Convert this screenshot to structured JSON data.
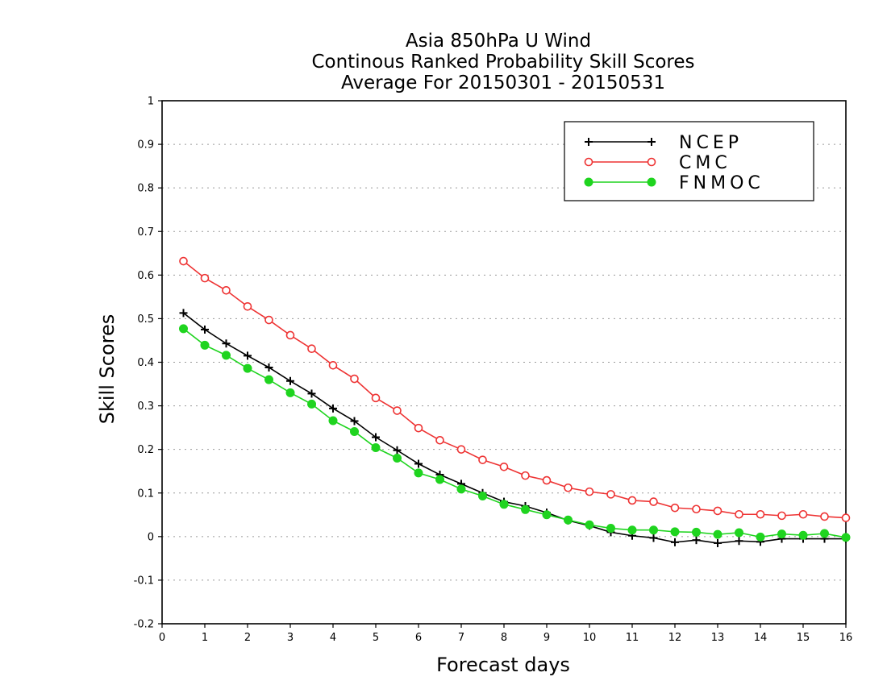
{
  "chart_data": {
    "type": "line",
    "title_lines": [
      "Asia 850hPa U Wind",
      "Continous Ranked Probability Skill Scores",
      "Average For 20150301 - 20150531"
    ],
    "xlabel": "Forecast days",
    "ylabel": "Skill Scores",
    "xlim": [
      0,
      16
    ],
    "ylim": [
      -0.2,
      1
    ],
    "xticks": [
      "0",
      "1",
      "2",
      "3",
      "4",
      "5",
      "6",
      "7",
      "8",
      "9",
      "10",
      "11",
      "12",
      "13",
      "14",
      "15",
      "16"
    ],
    "yticks": [
      "-0.2",
      "-0.1",
      "0",
      "0.1",
      "0.2",
      "0.3",
      "0.4",
      "0.5",
      "0.6",
      "0.7",
      "0.8",
      "0.9",
      "1"
    ],
    "grid": true,
    "legend_position": "top-right",
    "x": [
      0.5,
      1,
      1.5,
      2,
      2.5,
      3,
      3.5,
      4,
      4.5,
      5,
      5.5,
      6,
      6.5,
      7,
      7.5,
      8,
      8.5,
      9,
      9.5,
      10,
      10.5,
      11,
      11.5,
      12,
      12.5,
      13,
      13.5,
      14,
      14.5,
      15,
      15.5,
      16
    ],
    "series": [
      {
        "name": "NCEP",
        "color": "#000000",
        "marker": "plus",
        "values": [
          0.513,
          0.475,
          0.443,
          0.415,
          0.388,
          0.357,
          0.328,
          0.294,
          0.265,
          0.228,
          0.198,
          0.167,
          0.142,
          0.121,
          0.1,
          0.08,
          0.07,
          0.055,
          0.037,
          0.025,
          0.01,
          0.002,
          -0.003,
          -0.013,
          -0.008,
          -0.015,
          -0.01,
          -0.012,
          -0.005,
          -0.005,
          -0.005,
          -0.005
        ]
      },
      {
        "name": "CMC",
        "color": "#ee3333",
        "marker": "open-circle",
        "values": [
          0.632,
          0.593,
          0.565,
          0.528,
          0.497,
          0.462,
          0.431,
          0.393,
          0.362,
          0.318,
          0.289,
          0.249,
          0.221,
          0.2,
          0.176,
          0.16,
          0.14,
          0.129,
          0.112,
          0.103,
          0.097,
          0.083,
          0.08,
          0.066,
          0.063,
          0.059,
          0.051,
          0.051,
          0.048,
          0.051,
          0.046,
          0.043
        ]
      },
      {
        "name": "FNMOC",
        "color": "#1fd41f",
        "marker": "filled-circle",
        "values": [
          0.477,
          0.439,
          0.416,
          0.386,
          0.36,
          0.33,
          0.304,
          0.266,
          0.241,
          0.204,
          0.18,
          0.146,
          0.131,
          0.109,
          0.093,
          0.074,
          0.062,
          0.05,
          0.038,
          0.027,
          0.019,
          0.015,
          0.015,
          0.011,
          0.01,
          0.005,
          0.009,
          -0.001,
          0.006,
          0.003,
          0.007,
          -0.002
        ]
      }
    ]
  }
}
